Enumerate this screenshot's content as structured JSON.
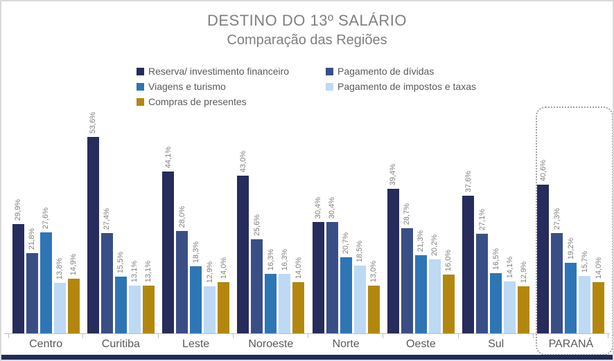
{
  "title": "DESTINO DO 13º SALÁRIO",
  "subtitle": "Comparação das Regiões",
  "chart_data": {
    "type": "bar",
    "title": "DESTINO DO 13º SALÁRIO",
    "subtitle": "Comparação das Regiões",
    "categories": [
      "Centro",
      "Curitiba",
      "Leste",
      "Noroeste",
      "Norte",
      "Oeste",
      "Sul",
      "PARANÁ"
    ],
    "series": [
      {
        "name": "Reserva/ investimento financeiro",
        "color": "#262c5b",
        "values": [
          29.9,
          53.6,
          44.1,
          43.0,
          30.4,
          39.4,
          37.6,
          40.6
        ]
      },
      {
        "name": "Pagamento de dívidas",
        "color": "#3a4e86",
        "values": [
          21.8,
          27.4,
          28.0,
          25.6,
          30.4,
          28.7,
          27.1,
          27.3
        ]
      },
      {
        "name": "Viagens e turismo",
        "color": "#2e75b6",
        "values": [
          27.6,
          15.5,
          18.3,
          16.3,
          20.7,
          21.3,
          16.5,
          19.2
        ]
      },
      {
        "name": "Pagamento de impostos e taxas",
        "color": "#bdd9f4",
        "values": [
          13.8,
          13.1,
          12.9,
          16.3,
          18.5,
          20.2,
          14.1,
          15.7
        ]
      },
      {
        "name": "Compras de presentes",
        "color": "#b3870e",
        "values": [
          14.9,
          13.1,
          14.0,
          14.0,
          13.0,
          16.0,
          12.9,
          14.0
        ]
      }
    ],
    "value_label_format": "decimal-comma-percent",
    "value_labels_rotated": true,
    "legend_position": "top",
    "legend_columns": [
      [
        0,
        2,
        4
      ],
      [
        1,
        3
      ]
    ],
    "grid": false,
    "y_axis_visible": false,
    "ylim": [
      0,
      56
    ],
    "xlabel": "",
    "ylabel": "",
    "highlight": {
      "category": "PARANÁ",
      "style": "dotted-rounded-outline",
      "color": "#9e9e9e"
    }
  },
  "colors": {
    "title_text": "#7f7f7f",
    "value_label_text": "#7f7f7f",
    "category_text": "#595959",
    "legend_text": "#595959",
    "axis_line": "#bfbfbf",
    "frame_border": "#d9d9d9",
    "bottom_strip": "#232a56"
  }
}
